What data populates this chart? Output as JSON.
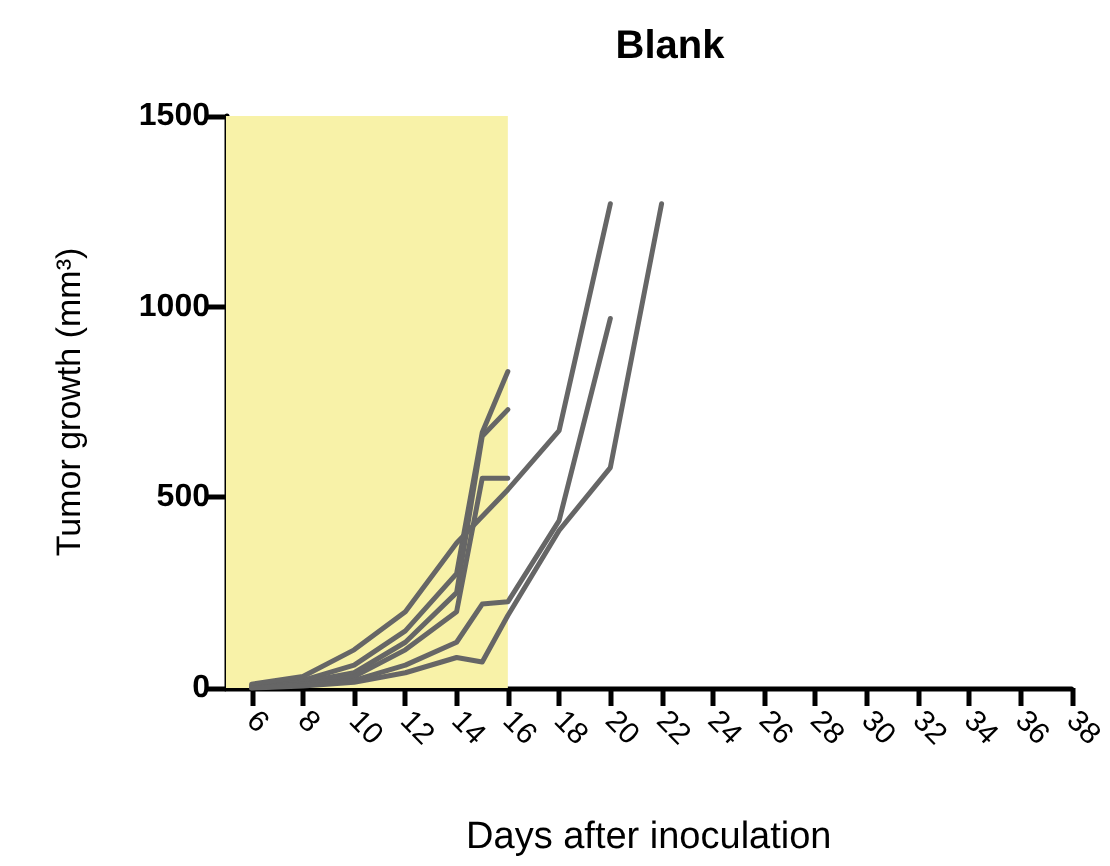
{
  "chart_data": {
    "type": "line",
    "title": "Blank",
    "xlabel": "Days after inoculation",
    "ylabel": "Tumor growth (mm³)",
    "xlim": [
      5,
      38
    ],
    "xticks": [
      6,
      8,
      10,
      12,
      14,
      16,
      18,
      20,
      22,
      24,
      26,
      28,
      30,
      32,
      34,
      36,
      38
    ],
    "ylim": [
      0,
      1500
    ],
    "yticks": [
      0,
      500,
      1000,
      1500
    ],
    "grid": false,
    "marker": "none",
    "line_style": "solid",
    "bands": [
      {
        "axis": "x",
        "from": 5,
        "to": 16,
        "color": "#f8f2a8"
      }
    ],
    "series": [
      {
        "color": "#666666",
        "x": [
          6,
          8,
          10,
          12,
          14,
          15,
          16
        ],
        "values": [
          5,
          20,
          60,
          150,
          300,
          670,
          830
        ]
      },
      {
        "color": "#666666",
        "x": [
          6,
          8,
          10,
          12,
          14,
          15,
          16
        ],
        "values": [
          5,
          15,
          40,
          120,
          250,
          660,
          730
        ]
      },
      {
        "color": "#666666",
        "x": [
          6,
          8,
          10,
          12,
          14,
          15,
          16
        ],
        "values": [
          0,
          10,
          30,
          100,
          200,
          550,
          550
        ]
      },
      {
        "color": "#666666",
        "x": [
          6,
          8,
          10,
          12,
          14,
          16,
          18,
          20
        ],
        "values": [
          10,
          30,
          100,
          200,
          380,
          520,
          675,
          1270
        ]
      },
      {
        "color": "#666666",
        "x": [
          6,
          8,
          10,
          12,
          14,
          15,
          16,
          18,
          20
        ],
        "values": [
          0,
          10,
          20,
          60,
          120,
          220,
          226,
          439,
          969
        ]
      },
      {
        "color": "#666666",
        "x": [
          6,
          8,
          10,
          12,
          14,
          15,
          16,
          18,
          20,
          22
        ],
        "values": [
          0,
          5,
          15,
          40,
          80,
          68,
          190,
          413,
          578,
          1270
        ]
      }
    ]
  }
}
